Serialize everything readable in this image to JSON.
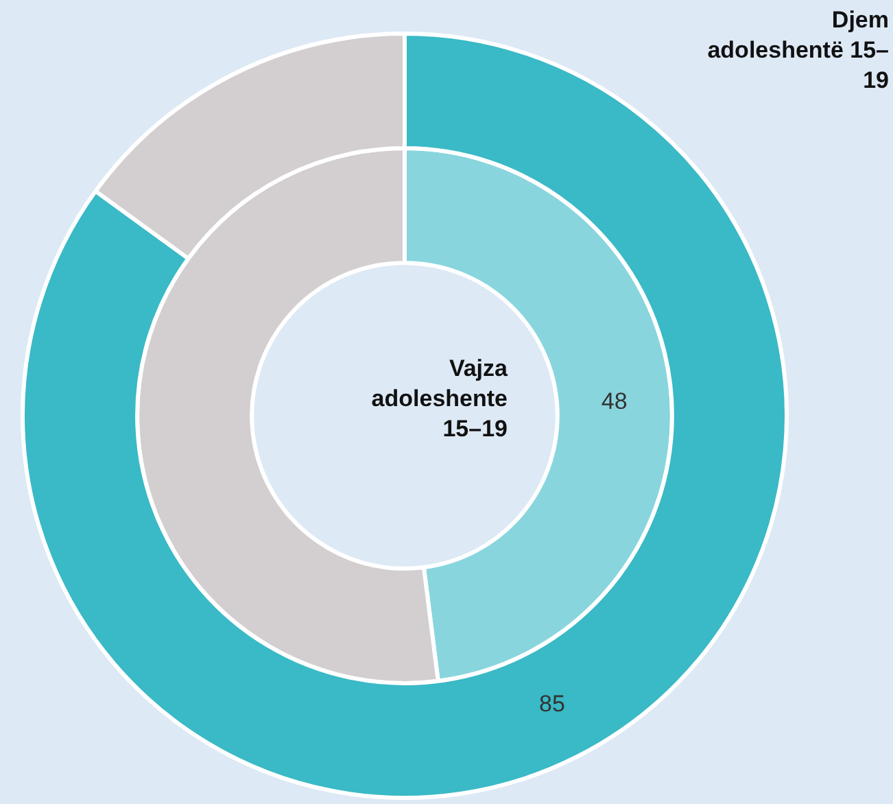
{
  "chart_data": {
    "type": "donut",
    "categories": [
      null,
      null
    ],
    "legend": false,
    "series": [
      {
        "name": "Djem adoleshentë 15–19",
        "colors": [
          "#3ab9c6",
          "#d3cfd0"
        ],
        "values": [
          85,
          15
        ],
        "value_labels": [
          "85",
          null
        ]
      },
      {
        "name": "Vajza adoleshente 15–19",
        "colors": [
          "#89d5dd",
          "#d3cfd0"
        ],
        "values": [
          48,
          52
        ],
        "value_labels": [
          "48",
          null
        ]
      }
    ]
  }
}
